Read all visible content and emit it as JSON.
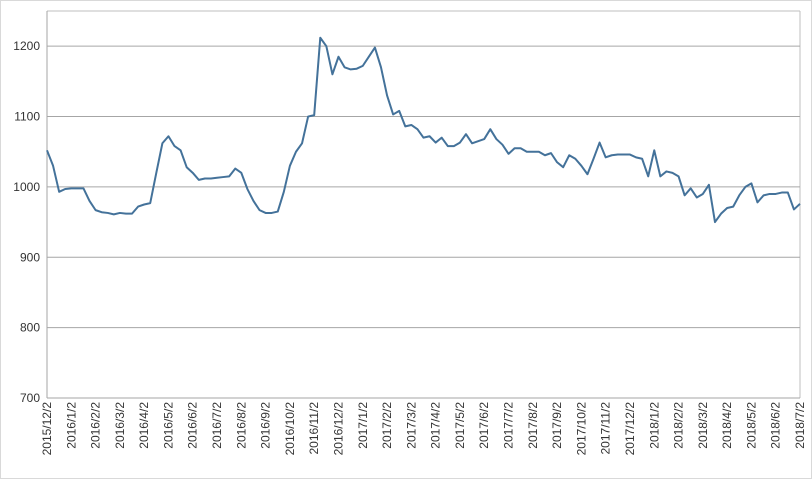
{
  "chart_data": {
    "type": "line",
    "categories": [
      "2015/12/2",
      null,
      null,
      null,
      "2016/1/2",
      null,
      null,
      null,
      "2016/2/2",
      null,
      null,
      null,
      "2016/3/2",
      null,
      null,
      null,
      "2016/4/2",
      null,
      null,
      null,
      "2016/5/2",
      null,
      null,
      null,
      "2016/6/2",
      null,
      null,
      null,
      "2016/7/2",
      null,
      null,
      null,
      "2016/8/2",
      null,
      null,
      null,
      "2016/9/2",
      null,
      null,
      null,
      "2016/10/2",
      null,
      null,
      null,
      "2016/11/2",
      null,
      null,
      null,
      "2016/12/2",
      null,
      null,
      null,
      "2017/1/2",
      null,
      null,
      null,
      "2017/2/2",
      null,
      null,
      null,
      "2017/3/2",
      null,
      null,
      null,
      "2017/4/2",
      null,
      null,
      null,
      "2017/5/2",
      null,
      null,
      null,
      "2017/6/2",
      null,
      null,
      null,
      "2017/7/2",
      null,
      null,
      null,
      "2017/8/2",
      null,
      null,
      null,
      "2017/9/2",
      null,
      null,
      null,
      "2017/10/2",
      null,
      null,
      null,
      "2017/11/2",
      null,
      null,
      null,
      "2017/12/2",
      null,
      null,
      null,
      "2018/1/2",
      null,
      null,
      null,
      "2018/2/2",
      null,
      null,
      null,
      "2018/3/2",
      null,
      null,
      null,
      "2018/4/2",
      null,
      null,
      null,
      "2018/5/2",
      null,
      null,
      null,
      "2018/6/2",
      null,
      null,
      null,
      "2018/7/2"
    ],
    "values": [
      1052,
      1030,
      993,
      997,
      998,
      998,
      998,
      980,
      967,
      964,
      963,
      961,
      963,
      962,
      962,
      972,
      975,
      977,
      1020,
      1062,
      1072,
      1058,
      1052,
      1028,
      1020,
      1010,
      1012,
      1012,
      1013,
      1014,
      1015,
      1026,
      1020,
      997,
      980,
      967,
      963,
      963,
      965,
      993,
      1030,
      1050,
      1062,
      1100,
      1102,
      1212,
      1200,
      1160,
      1185,
      1170,
      1167,
      1168,
      1172,
      1185,
      1198,
      1170,
      1130,
      1103,
      1108,
      1086,
      1088,
      1082,
      1070,
      1072,
      1063,
      1070,
      1058,
      1058,
      1063,
      1075,
      1062,
      1065,
      1068,
      1082,
      1068,
      1060,
      1047,
      1055,
      1055,
      1050,
      1050,
      1050,
      1045,
      1048,
      1035,
      1028,
      1045,
      1040,
      1030,
      1018,
      1040,
      1063,
      1042,
      1045,
      1046,
      1046,
      1046,
      1042,
      1040,
      1015,
      1052,
      1015,
      1022,
      1020,
      1015,
      988,
      998,
      985,
      990,
      1003,
      950,
      962,
      970,
      972,
      988,
      1000,
      1005,
      978,
      988,
      990,
      990,
      992,
      992,
      968,
      976
    ],
    "color": "#44729a",
    "ylim": [
      700,
      1250
    ],
    "yticks": [
      700,
      800,
      900,
      1000,
      1100,
      1200
    ],
    "grid": true
  }
}
